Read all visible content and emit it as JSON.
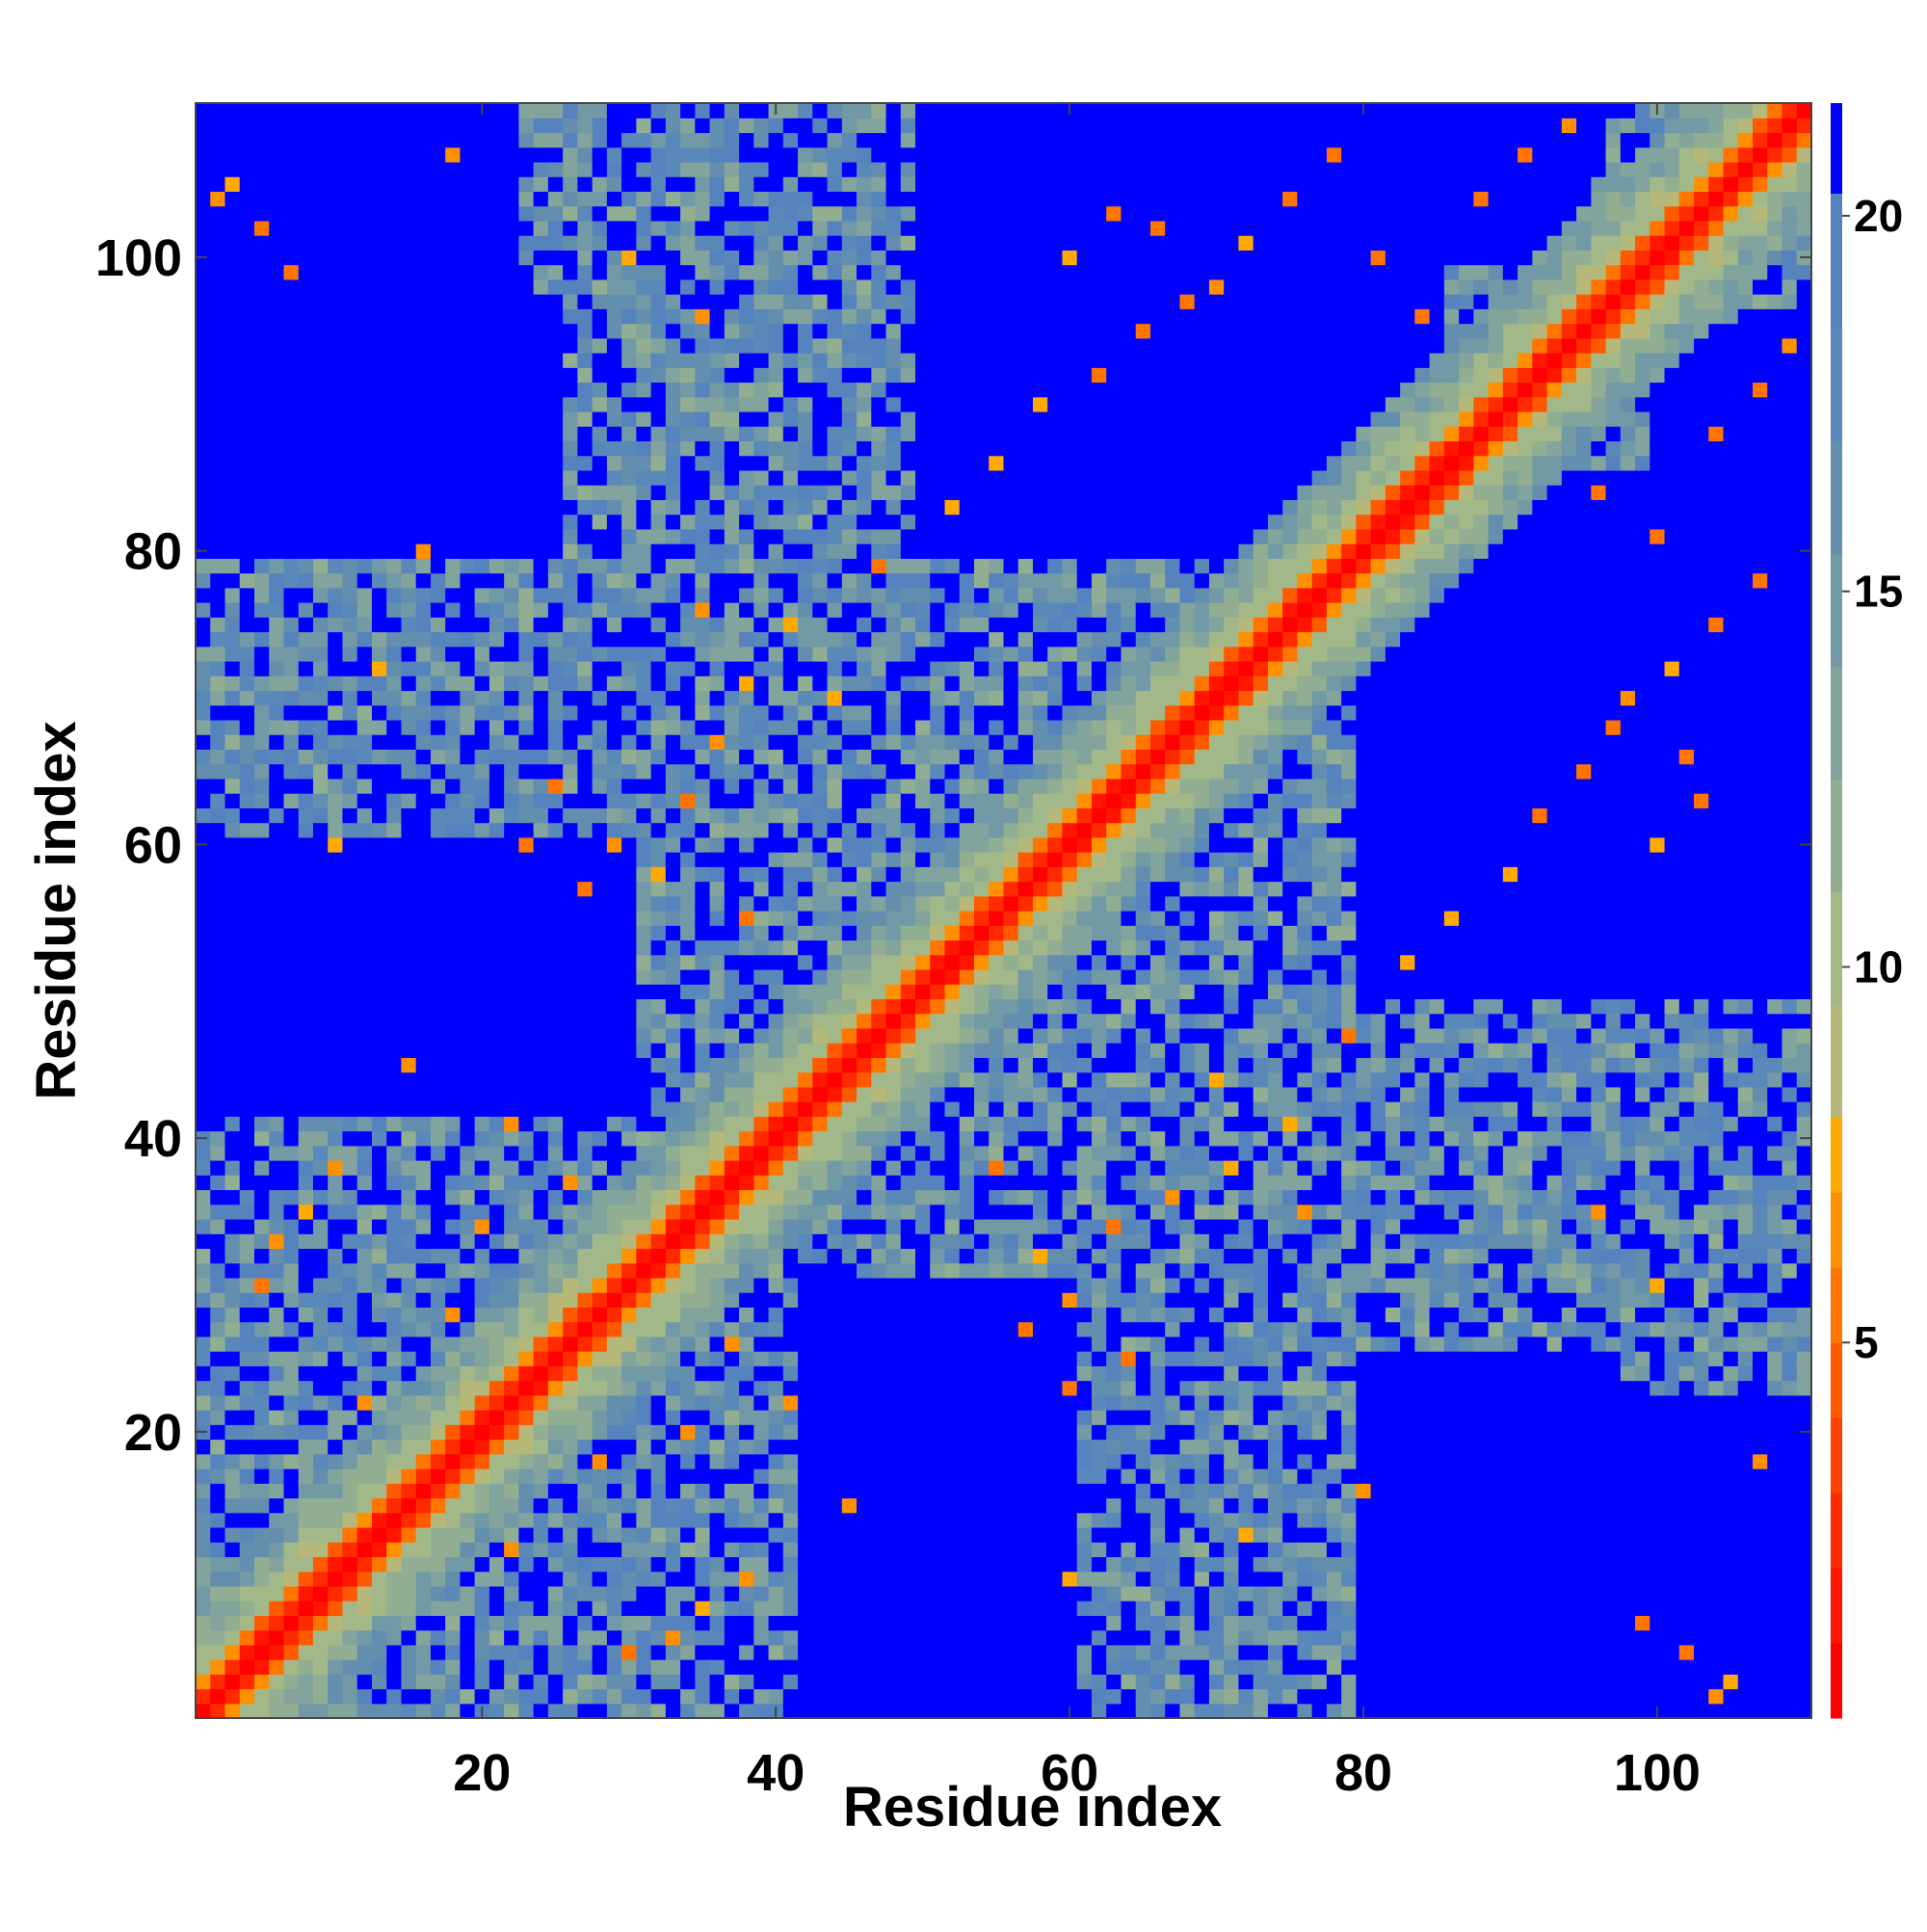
{
  "chart_data": {
    "type": "heatmap",
    "title": "",
    "xlabel": "Residue index",
    "ylabel": "Residue index",
    "n_residues": 110,
    "xlim": [
      0.5,
      110.5
    ],
    "ylim": [
      0.5,
      110.5
    ],
    "x_ticks": [
      20,
      40,
      60,
      80,
      100
    ],
    "y_ticks": [
      20,
      40,
      60,
      80,
      100
    ],
    "x_tick_labels": [
      "20",
      "40",
      "60",
      "80",
      "100"
    ],
    "y_tick_labels": [
      "20",
      "40",
      "60",
      "80",
      "100"
    ],
    "colorbar": {
      "range": [
        0,
        21.5
      ],
      "ticks": [
        5,
        10,
        15,
        20
      ],
      "tick_labels": [
        "5",
        "10",
        "15",
        "20"
      ],
      "bands": [
        {
          "max": 1.0,
          "color": "#ff0000"
        },
        {
          "max": 2.0,
          "color": "#ff1500"
        },
        {
          "max": 3.0,
          "color": "#ff2a00"
        },
        {
          "max": 4.0,
          "color": "#ff4000"
        },
        {
          "max": 5.0,
          "color": "#ff5a00"
        },
        {
          "max": 6.0,
          "color": "#ff7500"
        },
        {
          "max": 7.0,
          "color": "#ff9000"
        },
        {
          "max": 8.0,
          "color": "#ffaa00"
        },
        {
          "max": 9.5,
          "color": "#b5b878"
        },
        {
          "max": 11.0,
          "color": "#a3b888"
        },
        {
          "max": 12.5,
          "color": "#92ae92"
        },
        {
          "max": 14.0,
          "color": "#82a49c"
        },
        {
          "max": 15.5,
          "color": "#7299a6"
        },
        {
          "max": 17.0,
          "color": "#638eae"
        },
        {
          "max": 18.5,
          "color": "#5a88b8"
        },
        {
          "max": 20.3,
          "color": "#5683bd"
        },
        {
          "max": 99,
          "color": "#0000ff"
        }
      ]
    },
    "description_of_values": "Symmetric residue-residue distance map; red along the diagonal, orange/olive bands near the diagonal, steel-blue intermediate regions and saturated blue (>20) in large off-diagonal blocks.",
    "blue_blocks": [
      {
        "i": [
          50,
          85
        ],
        "j": [
          80,
          110
        ]
      },
      {
        "i": [
          80,
          110
        ],
        "j": [
          50,
          85
        ]
      },
      {
        "i": [
          1,
          25
        ],
        "j": [
          80,
          97
        ]
      },
      {
        "i": [
          80,
          97
        ],
        "j": [
          1,
          25
        ]
      },
      {
        "i": [
          85,
          110
        ],
        "j": [
          1,
          22
        ]
      },
      {
        "i": [
          1,
          22
        ],
        "j": [
          85,
          110
        ]
      },
      {
        "i": [
          75,
          95
        ],
        "j": [
          100,
          110
        ]
      },
      {
        "i": [
          100,
          110
        ],
        "j": [
          75,
          95
        ]
      },
      {
        "i": [
          42,
          60
        ],
        "j": [
          1,
          30
        ]
      },
      {
        "i": [
          1,
          30
        ],
        "j": [
          42,
          60
        ]
      }
    ],
    "contacts": [
      [
        5,
        30
      ],
      [
        6,
        33
      ],
      [
        8,
        35
      ],
      [
        10,
        38
      ],
      [
        12,
        22
      ],
      [
        15,
        45
      ],
      [
        18,
        28
      ],
      [
        20,
        34
      ],
      [
        22,
        41
      ],
      [
        24,
        31
      ],
      [
        26,
        37
      ],
      [
        29,
        60
      ],
      [
        32,
        58
      ],
      [
        34,
        63
      ],
      [
        36,
        67
      ],
      [
        38,
        71
      ],
      [
        41,
        75
      ],
      [
        44,
        70
      ],
      [
        47,
        79
      ],
      [
        52,
        83
      ],
      [
        55,
        86
      ],
      [
        58,
        90
      ],
      [
        62,
        92
      ],
      [
        65,
        95
      ],
      [
        68,
        97
      ],
      [
        72,
        101
      ],
      [
        75,
        104
      ],
      [
        78,
        107
      ],
      [
        81,
        100
      ],
      [
        84,
        96
      ],
      [
        88,
        104
      ],
      [
        91,
        107
      ],
      [
        94,
        109
      ],
      [
        3,
        105
      ],
      [
        5,
        102
      ],
      [
        7,
        99
      ],
      [
        2,
        104
      ],
      [
        30,
        100
      ],
      [
        35,
        96
      ],
      [
        18,
        107
      ],
      [
        60,
        100
      ],
      [
        63,
        103
      ],
      [
        66,
        102
      ],
      [
        70,
        98
      ],
      [
        23,
        60
      ],
      [
        25,
        64
      ],
      [
        27,
        57
      ],
      [
        38,
        55
      ],
      [
        42,
        48
      ],
      [
        46,
        52
      ],
      [
        10,
        60
      ],
      [
        13,
        72
      ],
      [
        16,
        80
      ],
      [
        35,
        76
      ]
    ]
  }
}
